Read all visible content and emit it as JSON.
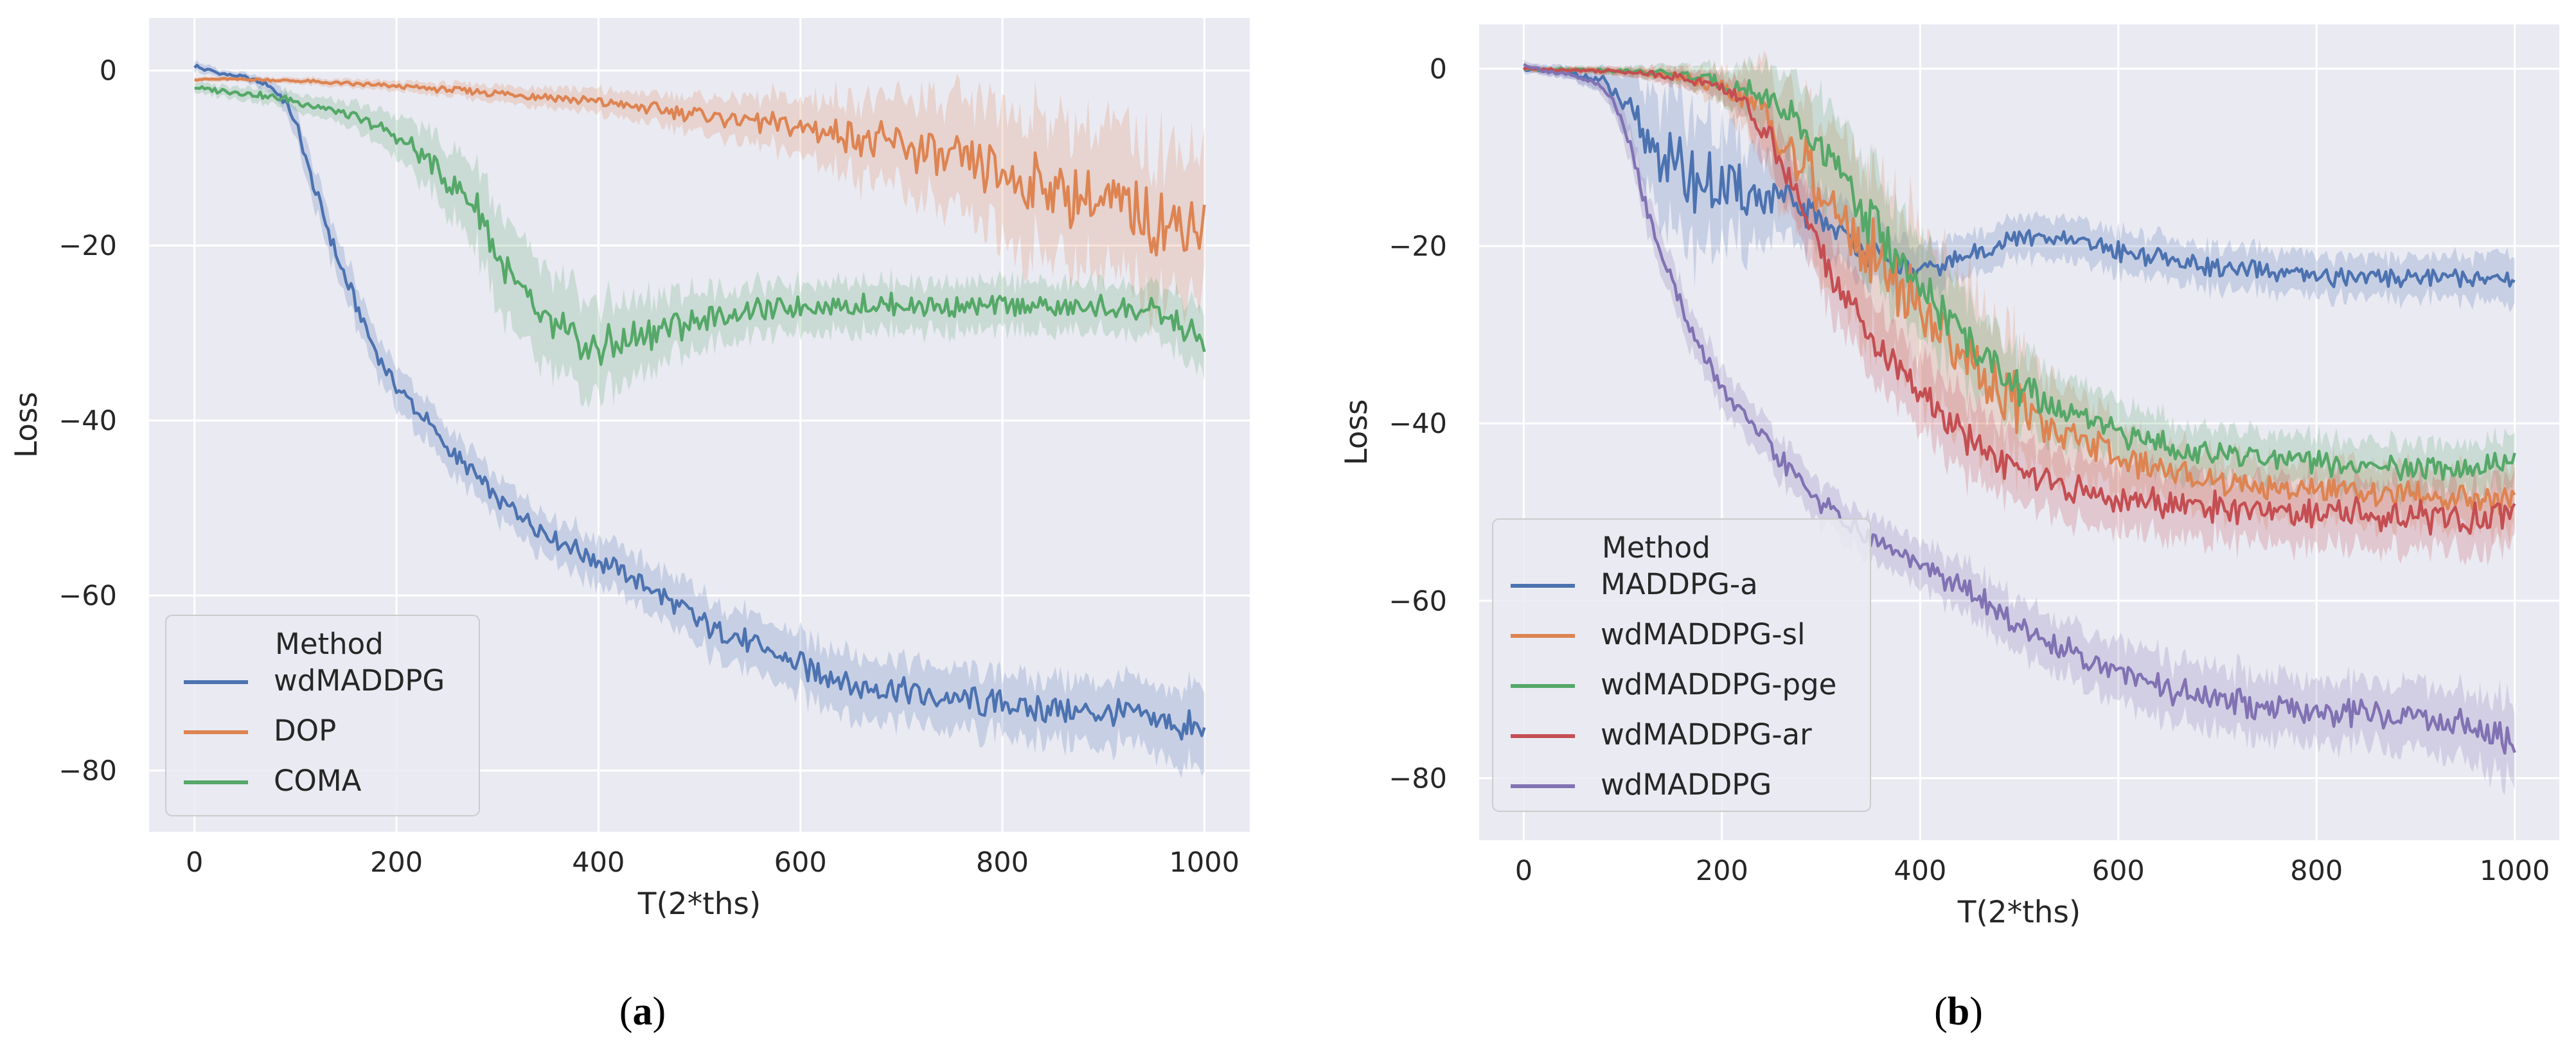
{
  "colors": {
    "background": "#EAEAF2",
    "grid": "#FFFFFF",
    "blue": "#4C72B0",
    "orange": "#DD8452",
    "green": "#55A868",
    "red": "#C44E52",
    "purple": "#8172B3"
  },
  "chart_data": [
    {
      "type": "line",
      "panel_label": "a",
      "panel_label_open": "(",
      "panel_label_close": ")",
      "xlabel": "T(2*ths)",
      "ylabel": "Loss",
      "xlim": [
        -45,
        1045
      ],
      "ylim": [
        -87,
        6
      ],
      "xticks": [
        0,
        200,
        400,
        600,
        800,
        1000
      ],
      "yticks": [
        0,
        -20,
        -40,
        -60,
        -80
      ],
      "grid": true,
      "legend": {
        "title": "Method",
        "position": "lower-left"
      },
      "series": [
        {
          "name": "wdMADDPG",
          "color": "blue",
          "x": [
            0,
            25,
            50,
            75,
            90,
            100,
            110,
            125,
            150,
            175,
            200,
            250,
            300,
            350,
            400,
            450,
            500,
            550,
            600,
            650,
            700,
            750,
            800,
            850,
            900,
            950,
            1000
          ],
          "y": [
            0.5,
            -0.3,
            -0.8,
            -1.8,
            -3.5,
            -6,
            -10,
            -16,
            -24,
            -31,
            -36,
            -43,
            -49,
            -53,
            -56,
            -59,
            -63,
            -65.5,
            -68,
            -70,
            -71,
            -72,
            -72.5,
            -73,
            -73.5,
            -74,
            -76
          ],
          "band": [
            0.6,
            0.5,
            0.5,
            0.8,
            1.2,
            1.8,
            2.2,
            2.5,
            2.5,
            2.5,
            2.5,
            2.5,
            2.5,
            2.6,
            2.8,
            3,
            3.2,
            3.4,
            3.6,
            3.8,
            3.8,
            3.8,
            3.8,
            3.8,
            4,
            4.2,
            5
          ]
        },
        {
          "name": "DOP",
          "color": "orange",
          "x": [
            0,
            50,
            100,
            150,
            200,
            250,
            300,
            350,
            400,
            450,
            500,
            550,
            600,
            650,
            700,
            750,
            800,
            850,
            900,
            950,
            1000
          ],
          "y": [
            -1,
            -1,
            -1.2,
            -1.5,
            -1.8,
            -2.2,
            -2.6,
            -3,
            -3.6,
            -4.3,
            -5,
            -5.8,
            -6.6,
            -7.6,
            -8.8,
            -10.3,
            -12,
            -13.8,
            -15.5,
            -17,
            -18
          ],
          "band": [
            0.3,
            0.3,
            0.4,
            0.5,
            0.6,
            0.8,
            1,
            1.2,
            1.5,
            1.8,
            2.2,
            2.8,
            3.5,
            4.5,
            5.5,
            6.8,
            8,
            8.5,
            8.8,
            9,
            9
          ]
        },
        {
          "name": "COMA",
          "color": "green",
          "x": [
            0,
            50,
            100,
            150,
            200,
            250,
            280,
            300,
            330,
            360,
            400,
            450,
            500,
            550,
            600,
            650,
            700,
            750,
            800,
            850,
            900,
            950,
            1000
          ],
          "y": [
            -2,
            -2.6,
            -3.5,
            -5,
            -7.5,
            -12,
            -16,
            -21,
            -27,
            -30,
            -32,
            -30,
            -28.5,
            -27.5,
            -27,
            -26.8,
            -26.8,
            -27,
            -27,
            -27,
            -27,
            -27.5,
            -31
          ],
          "band": [
            0.6,
            0.8,
            1,
            1.5,
            2.5,
            4,
            5,
            6,
            6,
            6,
            5.5,
            4.5,
            3.5,
            3,
            3,
            3,
            3,
            3,
            3,
            3,
            3,
            3,
            4
          ]
        }
      ]
    },
    {
      "type": "line",
      "panel_label": "b",
      "panel_label_open": "(",
      "panel_label_close": ")",
      "xlabel": "T(2*ths)",
      "ylabel": "Loss",
      "xlim": [
        -45,
        1045
      ],
      "ylim": [
        -87,
        5
      ],
      "xticks": [
        0,
        200,
        400,
        600,
        800,
        1000
      ],
      "yticks": [
        0,
        -20,
        -40,
        -60,
        -80
      ],
      "grid": true,
      "legend": {
        "title": "Method",
        "position": "center-left"
      },
      "series": [
        {
          "name": "MADDPG-a",
          "color": "blue",
          "x": [
            0,
            50,
            80,
            100,
            125,
            150,
            175,
            200,
            250,
            300,
            350,
            400,
            450,
            500,
            550,
            600,
            650,
            700,
            750,
            800,
            850,
            900,
            950,
            1000
          ],
          "y": [
            0,
            -0.5,
            -1.5,
            -4,
            -8,
            -11,
            -12.5,
            -13.5,
            -14.5,
            -17,
            -21,
            -23,
            -21,
            -19,
            -19.5,
            -20.5,
            -21.5,
            -22.5,
            -23,
            -23.5,
            -23.5,
            -23.5,
            -23.5,
            -24
          ],
          "band": [
            0.5,
            0.8,
            1.5,
            3.5,
            6,
            8,
            8,
            7,
            5,
            4,
            3.5,
            3,
            2.5,
            2.5,
            2.5,
            2.5,
            2.5,
            2.5,
            2.5,
            2.5,
            2.5,
            2.5,
            2.5,
            3
          ]
        },
        {
          "name": "wdMADDPG-sl",
          "color": "orange",
          "x": [
            0,
            100,
            150,
            200,
            225,
            250,
            275,
            300,
            350,
            400,
            450,
            500,
            550,
            600,
            650,
            700,
            750,
            800,
            850,
            900,
            950,
            1000
          ],
          "y": [
            0,
            -0.3,
            -0.8,
            -2,
            -3.5,
            -6,
            -10,
            -14,
            -21,
            -27,
            -33,
            -38,
            -41,
            -44,
            -45.5,
            -46.5,
            -47,
            -47.5,
            -48,
            -48,
            -48.5,
            -49
          ],
          "band": [
            0.3,
            0.5,
            1,
            2,
            4,
            6,
            8,
            9,
            10,
            10,
            9,
            7,
            5.5,
            4,
            3.5,
            3.5,
            3.5,
            3.5,
            3.5,
            3.5,
            3.5,
            4
          ]
        },
        {
          "name": "wdMADDPG-pge",
          "color": "green",
          "x": [
            0,
            100,
            150,
            200,
            250,
            300,
            350,
            400,
            450,
            500,
            550,
            600,
            650,
            700,
            750,
            800,
            850,
            900,
            950,
            1000
          ],
          "y": [
            0,
            -0.2,
            -0.6,
            -1.5,
            -3.5,
            -9,
            -17,
            -25,
            -31,
            -36,
            -39,
            -41,
            -42.5,
            -43.5,
            -44,
            -44.5,
            -45,
            -45,
            -45,
            -44
          ],
          "band": [
            0.3,
            0.5,
            1,
            2,
            4,
            6,
            6.5,
            6,
            5,
            4.5,
            4,
            3.5,
            3.5,
            3,
            3,
            3,
            3,
            3,
            3,
            3
          ]
        },
        {
          "name": "wdMADDPG-ar",
          "color": "red",
          "x": [
            0,
            100,
            150,
            200,
            225,
            250,
            275,
            300,
            350,
            400,
            450,
            500,
            550,
            600,
            650,
            700,
            750,
            800,
            850,
            900,
            950,
            1000
          ],
          "y": [
            0,
            -0.3,
            -0.8,
            -2,
            -4,
            -8,
            -14,
            -21,
            -30,
            -37,
            -42,
            -45.5,
            -47.5,
            -48.5,
            -49,
            -49.5,
            -50,
            -50,
            -50,
            -50.5,
            -51,
            -50
          ],
          "band": [
            0.3,
            0.5,
            1,
            1.5,
            2.5,
            3.5,
            4,
            4.5,
            4.5,
            4.5,
            4.5,
            4,
            4,
            4,
            4,
            4,
            4,
            4,
            4,
            4,
            4,
            4
          ]
        },
        {
          "name": "wdMADDPG",
          "color": "purple",
          "x": [
            0,
            25,
            50,
            75,
            90,
            100,
            110,
            125,
            150,
            175,
            200,
            250,
            300,
            350,
            400,
            450,
            500,
            550,
            600,
            650,
            700,
            750,
            800,
            850,
            900,
            950,
            1000
          ],
          "y": [
            0.5,
            -0.3,
            -0.8,
            -1.8,
            -3.5,
            -6,
            -10,
            -16,
            -24,
            -31,
            -36,
            -43,
            -49,
            -53,
            -56,
            -59,
            -63,
            -65.5,
            -68,
            -70,
            -71,
            -72,
            -72.5,
            -73,
            -73.5,
            -74,
            -76
          ],
          "band": [
            0.6,
            0.5,
            0.5,
            0.8,
            1.2,
            1.8,
            2.2,
            2.5,
            2.5,
            2.5,
            2.5,
            2.5,
            2.5,
            2.6,
            2.8,
            3,
            3.2,
            3.4,
            3.6,
            3.8,
            3.8,
            3.8,
            3.8,
            3.8,
            4,
            4.2,
            5
          ]
        }
      ]
    }
  ]
}
